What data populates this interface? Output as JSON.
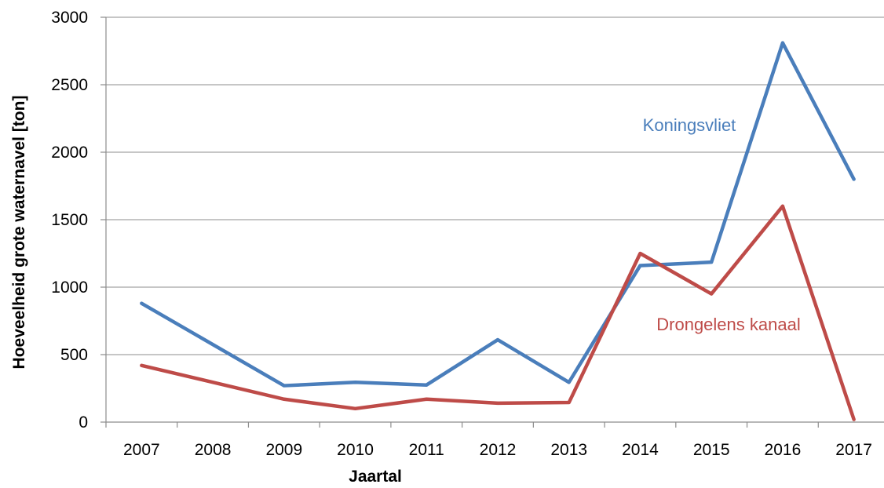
{
  "chart_data": {
    "type": "line",
    "xlabel": "Jaartal",
    "ylabel": "Hoeveelheid grote waternavel [ton]",
    "ylim": [
      0,
      3000
    ],
    "yticks": [
      "0",
      "500",
      "1000",
      "1500",
      "2000",
      "2500",
      "3000"
    ],
    "categories": [
      "2007",
      "2008",
      "2009",
      "2010",
      "2011",
      "2012",
      "2013",
      "2014",
      "2015",
      "2016",
      "2017"
    ],
    "grid": "horizontal",
    "series": [
      {
        "name": "Koningsvliet",
        "color": "#4a7ebb",
        "label_position": "inline above line near 2015",
        "points": [
          {
            "x": "2007",
            "y": 880
          },
          {
            "x": "2009",
            "y": 270
          },
          {
            "x": "2010",
            "y": 295
          },
          {
            "x": "2011",
            "y": 275
          },
          {
            "x": "2012",
            "y": 610
          },
          {
            "x": "2013",
            "y": 295
          },
          {
            "x": "2014",
            "y": 1160
          },
          {
            "x": "2015",
            "y": 1185
          },
          {
            "x": "2016",
            "y": 2810
          },
          {
            "x": "2017",
            "y": 1800
          }
        ]
      },
      {
        "name": "Drongelens kanaal",
        "color": "#be4b48",
        "label_position": "inline below line near 2015",
        "points": [
          {
            "x": "2007",
            "y": 420
          },
          {
            "x": "2009",
            "y": 170
          },
          {
            "x": "2010",
            "y": 100
          },
          {
            "x": "2011",
            "y": 170
          },
          {
            "x": "2012",
            "y": 140
          },
          {
            "x": "2013",
            "y": 145
          },
          {
            "x": "2014",
            "y": 1250
          },
          {
            "x": "2015",
            "y": 950
          },
          {
            "x": "2016",
            "y": 1600
          },
          {
            "x": "2017",
            "y": 20
          }
        ]
      }
    ]
  }
}
